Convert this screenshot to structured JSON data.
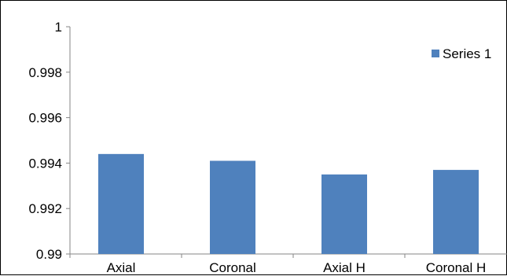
{
  "chart_data": {
    "type": "bar",
    "categories": [
      "Axial",
      "Coronal",
      "Axial H",
      "Coronal H"
    ],
    "series": [
      {
        "name": "Series 1",
        "values": [
          0.9944,
          0.9941,
          0.9935,
          0.9937
        ],
        "color": "#4f81bd"
      }
    ],
    "ylim": [
      0.99,
      1.0
    ],
    "yticks": [
      0.99,
      0.992,
      0.994,
      0.996,
      0.998,
      1.0
    ],
    "ytick_labels": [
      "0.99",
      "0.992",
      "0.994",
      "0.996",
      "0.998",
      "1"
    ],
    "legend_position": "top-right",
    "grid": false,
    "title": "",
    "xlabel": "",
    "ylabel": ""
  }
}
